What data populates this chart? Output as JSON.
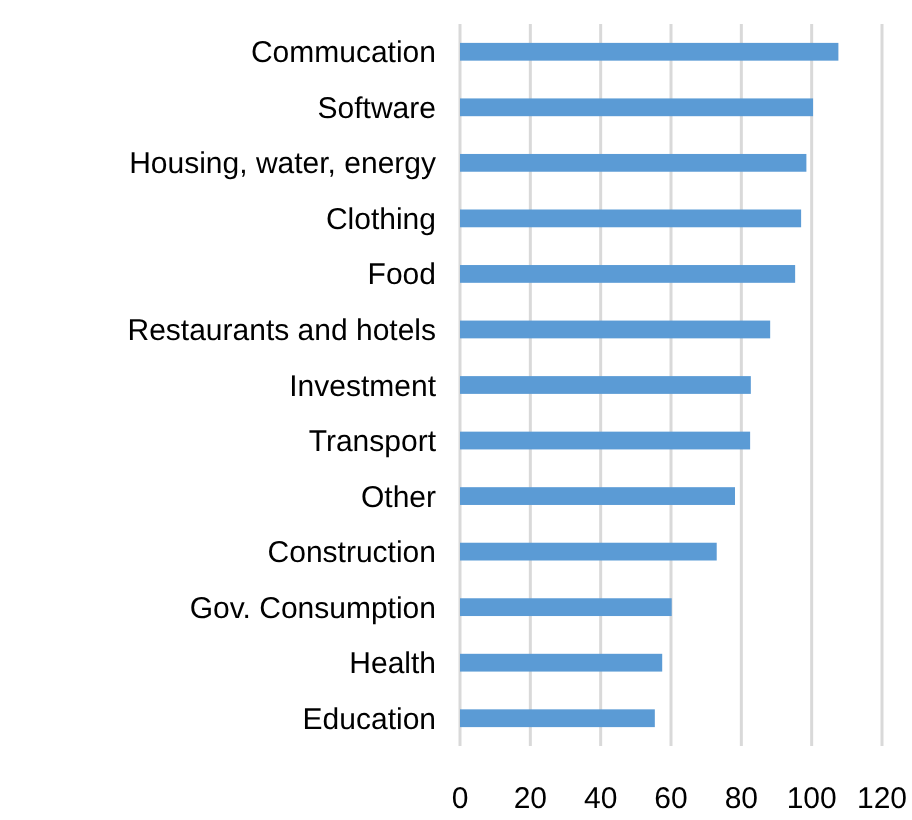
{
  "chart_data": {
    "type": "bar",
    "orientation": "horizontal",
    "categories": [
      "Commucation",
      "Software",
      "Housing, water, energy",
      "Clothing",
      "Food",
      "Restaurants and hotels",
      "Investment",
      "Transport",
      "Other",
      "Construction",
      "Gov. Consumption",
      "Health",
      "Education"
    ],
    "values": [
      107.6,
      100.4,
      98.5,
      97,
      95.3,
      88.2,
      82.7,
      82.5,
      78.2,
      73,
      60.2,
      57.5,
      55.4
    ],
    "color": "#5b9bd5",
    "xlim": [
      0,
      120
    ],
    "xticks": [
      0,
      20,
      40,
      60,
      80,
      100,
      120
    ],
    "grid": "x"
  }
}
